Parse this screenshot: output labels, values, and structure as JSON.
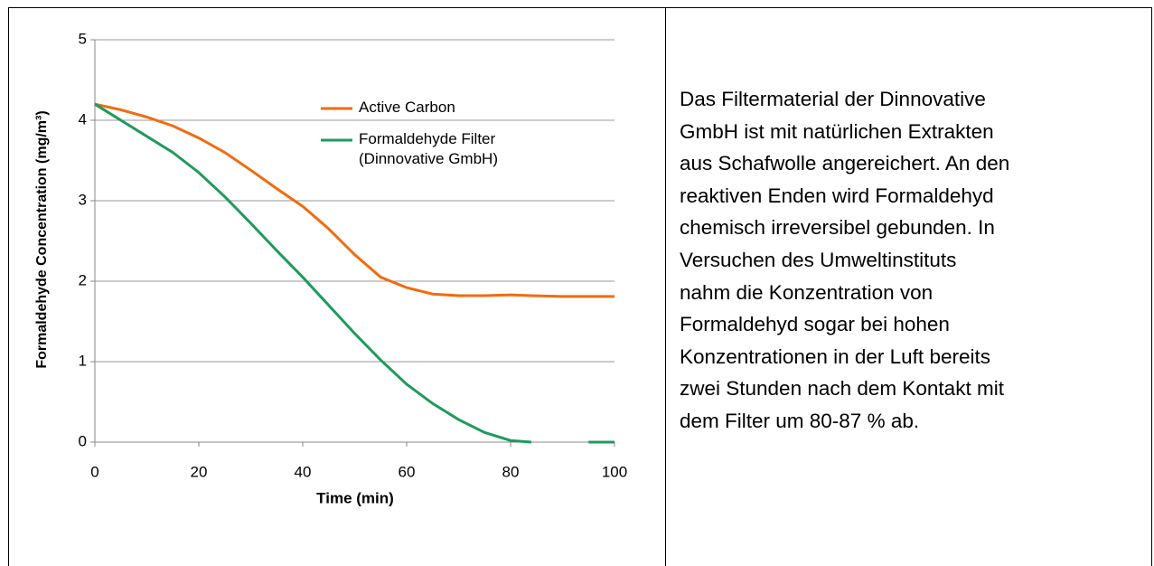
{
  "chart_data": {
    "type": "line",
    "xlabel": "Time (min)",
    "ylabel": "Formaldehyde Concentration  (mg/m³)",
    "x": [
      0,
      5,
      10,
      15,
      20,
      25,
      30,
      35,
      40,
      45,
      50,
      55,
      60,
      65,
      70,
      75,
      80,
      84,
      90,
      95,
      100
    ],
    "series": [
      {
        "name": "Active Carbon",
        "color": "#f26b0f",
        "values": [
          4.2,
          4.13,
          4.04,
          3.93,
          3.78,
          3.6,
          3.38,
          3.15,
          2.93,
          2.65,
          2.33,
          2.05,
          1.92,
          1.84,
          1.82,
          1.82,
          1.83,
          1.82,
          1.81,
          1.81,
          1.81
        ]
      },
      {
        "name": "Formaldehyde Filter (Dinnovative GmbH)",
        "color": "#1f9a5e",
        "values": [
          4.2,
          4.0,
          3.8,
          3.6,
          3.35,
          3.05,
          2.72,
          2.38,
          2.05,
          1.7,
          1.35,
          1.02,
          0.72,
          0.48,
          0.28,
          0.12,
          0.02,
          0,
          null,
          0,
          0
        ]
      }
    ],
    "xlim": [
      0,
      100
    ],
    "xticks": [
      0,
      20,
      40,
      60,
      80,
      100
    ],
    "ylim": [
      0,
      5
    ],
    "yticks": [
      0,
      1,
      2,
      3,
      4,
      5
    ],
    "grid": true
  },
  "text": {
    "lines": [
      "Das Filtermaterial der Dinnovative",
      "GmbH ist mit natürlichen Extrakten",
      "aus Schafwolle angereichert. An den",
      "reaktiven Enden wird Formaldehyd",
      "chemisch irreversibel gebunden. In",
      "Versuchen des Umweltinstituts",
      "nahm die Konzentration von",
      "Formaldehyd sogar bei hohen",
      "Konzentrationen in der Luft bereits",
      "zwei Stunden nach dem Kontakt mit",
      "dem Filter um 80-87 % ab."
    ]
  }
}
